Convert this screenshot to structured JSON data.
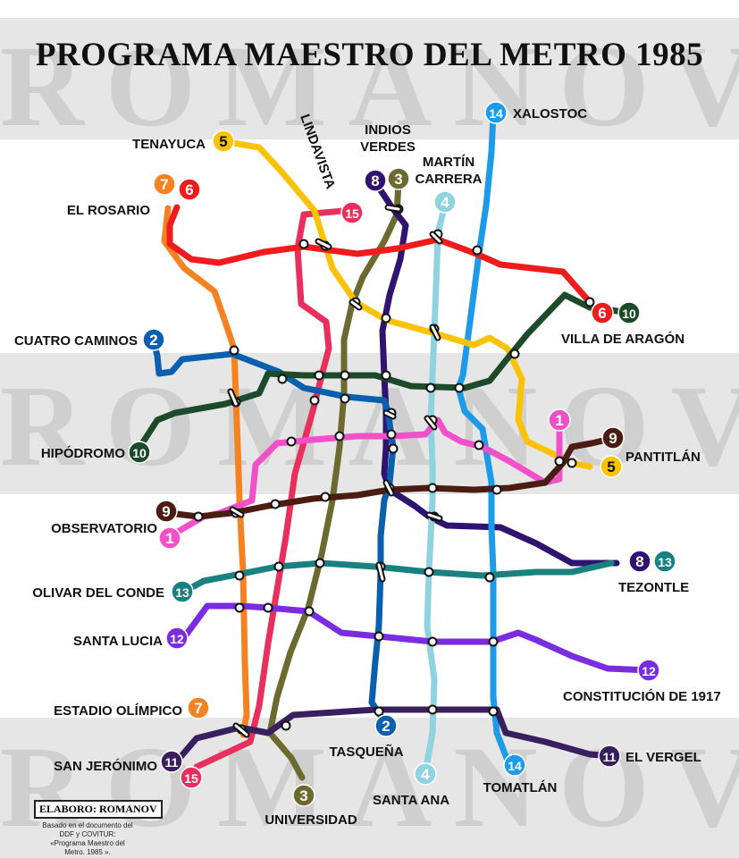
{
  "title": "PROGRAMA MAESTRO DEL METRO 1985",
  "watermark": "ROMANOV",
  "credit": "ELABORO: ROMANOV",
  "credit_note": "Basado en el documento del DDF y COVITUR: «Programa Maestro del Metro. 1985 ».",
  "line_colors": {
    "1": "#f050c8",
    "2": "#0a5fae",
    "3": "#6b6b2f",
    "4": "#8fd3e0",
    "5": "#fbc208",
    "6": "#ee1c1c",
    "7": "#f58220",
    "8": "#2e1470",
    "9": "#4a1c12",
    "10": "#1d4a2a",
    "11": "#3a1f5e",
    "12": "#7a2de0",
    "13": "#1a8080",
    "14": "#1e9be8",
    "15": "#e8305c"
  },
  "terminals": [
    {
      "name": "TENAYUCA",
      "lines": [
        "5"
      ]
    },
    {
      "name": "LINDAVISTA",
      "lines": [
        "15"
      ]
    },
    {
      "name": "INDIOS VERDES",
      "lines": [
        "8",
        "3"
      ]
    },
    {
      "name": "MARTÍN CARRERA",
      "lines": [
        "4"
      ]
    },
    {
      "name": "XALOSTOC",
      "lines": [
        "14"
      ]
    },
    {
      "name": "EL ROSARIO",
      "lines": [
        "7",
        "6"
      ]
    },
    {
      "name": "VILLA DE ARAGÓN",
      "lines": [
        "6",
        "10"
      ]
    },
    {
      "name": "CUATRO CAMINOS",
      "lines": [
        "2"
      ]
    },
    {
      "name": "HIPÓDROMO",
      "lines": [
        "10"
      ]
    },
    {
      "name": "PANTITLÁN",
      "lines": [
        "9",
        "1",
        "5"
      ]
    },
    {
      "name": "OBSERVATORIO",
      "lines": [
        "9",
        "1"
      ]
    },
    {
      "name": "TEZONTLE",
      "lines": [
        "8",
        "13"
      ]
    },
    {
      "name": "OLIVAR DEL CONDE",
      "lines": [
        "13"
      ]
    },
    {
      "name": "SANTA LUCIA",
      "lines": [
        "12"
      ]
    },
    {
      "name": "CONSTITUCIÓN DE 1917",
      "lines": [
        "12"
      ]
    },
    {
      "name": "ESTADIO OLÍMPICO",
      "lines": [
        "7"
      ]
    },
    {
      "name": "TASQUEÑA",
      "lines": [
        "2"
      ]
    },
    {
      "name": "SAN JERÓNIMO",
      "lines": [
        "11",
        "15"
      ]
    },
    {
      "name": "EL VERGEL",
      "lines": [
        "11"
      ]
    },
    {
      "name": "SANTA ANA",
      "lines": [
        "4"
      ]
    },
    {
      "name": "TOMATLÁN",
      "lines": [
        "14"
      ]
    },
    {
      "name": "UNIVERSIDAD",
      "lines": [
        "3"
      ]
    }
  ]
}
